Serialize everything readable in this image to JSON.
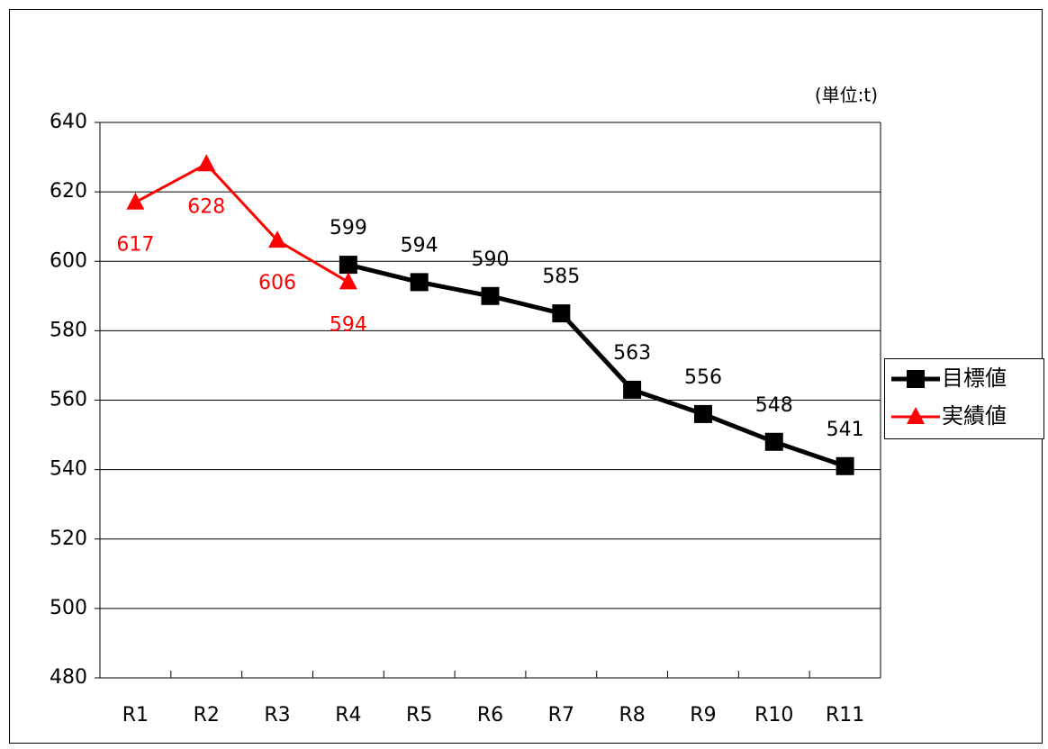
{
  "chart_data": {
    "type": "line",
    "annotation": "(単位:t)",
    "categories": [
      "R1",
      "R2",
      "R3",
      "R4",
      "R5",
      "R6",
      "R7",
      "R8",
      "R9",
      "R10",
      "R11"
    ],
    "series": [
      {
        "name": "目標値",
        "color": "#000000",
        "marker": "square",
        "values": [
          null,
          null,
          null,
          599,
          594,
          590,
          585,
          563,
          556,
          548,
          541
        ]
      },
      {
        "name": "実績値",
        "color": "#ff0000",
        "marker": "triangle",
        "values": [
          617,
          628,
          606,
          594,
          null,
          null,
          null,
          null,
          null,
          null,
          null
        ]
      }
    ],
    "ylim": [
      480,
      640
    ],
    "yticks": [
      480,
      500,
      520,
      540,
      560,
      580,
      600,
      620,
      640
    ],
    "grid": true,
    "legend": "right"
  }
}
